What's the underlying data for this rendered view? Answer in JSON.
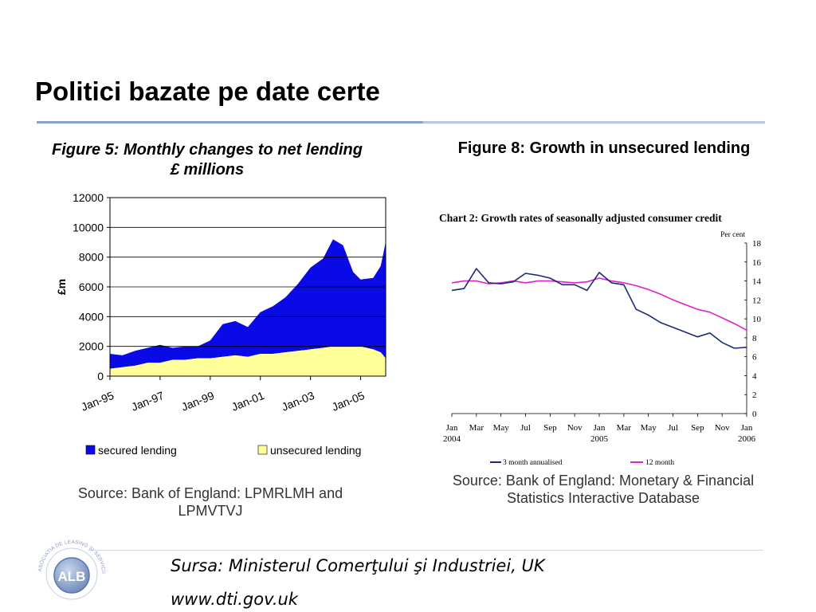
{
  "slide": {
    "title": "Politici bazate pe date certe",
    "footer_source": "Sursa: Ministerul Comerţului şi Industriei, UK",
    "footer_url": "www.dti.gov.uk",
    "logo_text": "ALB",
    "logo_ring_text": "ASOCIATIA DE LEASING SI SERVICII FINANCIARE NEBANCARE"
  },
  "colors": {
    "secured": "#0a0ae6",
    "unsecured": "#ffff99",
    "three_month": "#1a2a7a",
    "twelve_month": "#e020d0",
    "title_rule": "#8aa0c4"
  },
  "chart_data": [
    {
      "type": "area",
      "title": "Figure 5: Monthly changes to net lending £ millions",
      "ylabel": "£m",
      "xlabel": "",
      "ylim": [
        0,
        12000
      ],
      "yticks": [
        0,
        2000,
        4000,
        6000,
        8000,
        10000,
        12000
      ],
      "xticks": [
        "Jan-95",
        "Jan-97",
        "Jan-99",
        "Jan-01",
        "Jan-03",
        "Jan-05"
      ],
      "xlim": [
        1995.0,
        2006.0
      ],
      "grid": true,
      "legend_position": "bottom",
      "stacked": true,
      "x": [
        1995.0,
        1995.5,
        1996.0,
        1996.5,
        1997.0,
        1997.5,
        1998.0,
        1998.5,
        1999.0,
        1999.5,
        2000.0,
        2000.5,
        2001.0,
        2001.5,
        2002.0,
        2002.5,
        2003.0,
        2003.5,
        2003.9,
        2004.3,
        2004.7,
        2005.0,
        2005.5,
        2005.8,
        2006.0
      ],
      "series": [
        {
          "name": "secured lending",
          "values": [
            1000,
            800,
            1000,
            1000,
            1200,
            800,
            900,
            800,
            1200,
            2200,
            2300,
            2000,
            2800,
            3200,
            3700,
            4500,
            5500,
            6000,
            7200,
            6800,
            5000,
            4500,
            4800,
            5800,
            7800
          ]
        },
        {
          "name": "unsecured lending",
          "values": [
            500,
            600,
            700,
            900,
            900,
            1100,
            1100,
            1200,
            1200,
            1300,
            1400,
            1300,
            1500,
            1500,
            1600,
            1700,
            1800,
            1900,
            2000,
            2000,
            2000,
            2000,
            1800,
            1600,
            1200
          ]
        }
      ]
    },
    {
      "type": "line",
      "title": "Figure 8: Growth in unsecured lending",
      "subtitle": "Chart 2: Growth rates of seasonally adjusted consumer credit",
      "ylabel": "Per cent",
      "ylim": [
        0,
        18
      ],
      "yticks": [
        0,
        2,
        4,
        6,
        8,
        10,
        12,
        14,
        16,
        18
      ],
      "axis_position": "right",
      "xticks": [
        "Jan",
        "Mar",
        "May",
        "Jul",
        "Sep",
        "Nov",
        "Jan",
        "Mar",
        "May",
        "Jul",
        "Sep",
        "Nov",
        "Jan"
      ],
      "xyears": [
        "2004",
        "",
        "",
        "",
        "",
        "",
        "2005",
        "",
        "",
        "",
        "",
        "",
        "2006"
      ],
      "x": [
        0,
        1,
        2,
        3,
        4,
        5,
        6,
        7,
        8,
        9,
        10,
        11,
        12,
        13,
        14,
        15,
        16,
        17,
        18,
        19,
        20,
        21,
        22,
        23,
        24
      ],
      "grid": false,
      "legend_position": "bottom",
      "series": [
        {
          "name": "3 month annualised",
          "values": [
            13.0,
            13.2,
            15.3,
            13.8,
            13.7,
            13.9,
            14.8,
            14.6,
            14.3,
            13.6,
            13.6,
            13.0,
            14.9,
            13.8,
            13.6,
            11.0,
            10.4,
            9.6,
            9.1,
            8.6,
            8.1,
            8.5,
            7.5,
            6.9,
            7.0
          ]
        },
        {
          "name": "12 month",
          "values": [
            13.8,
            14.0,
            14.0,
            13.7,
            13.8,
            14.0,
            13.8,
            14.0,
            14.0,
            13.9,
            13.8,
            13.9,
            14.3,
            14.0,
            13.8,
            13.5,
            13.1,
            12.6,
            12.0,
            11.5,
            11.0,
            10.7,
            10.1,
            9.5,
            8.8
          ]
        }
      ]
    }
  ],
  "figures": {
    "fig5": {
      "title": "Figure 5: Monthly changes to net lending £ millions",
      "source": "Source: Bank of England: LPMRLMH and LPMVTVJ"
    },
    "fig8": {
      "title": "Figure 8: Growth in unsecured lending",
      "source": "Source: Bank of England: Monetary & Financial Statistics Interactive Database"
    }
  }
}
